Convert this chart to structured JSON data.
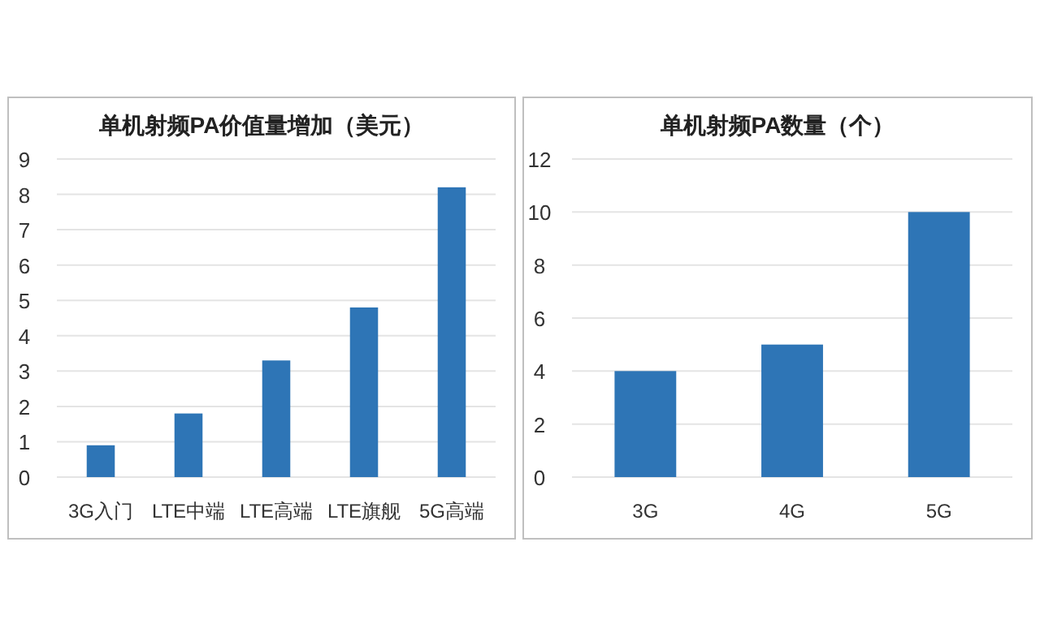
{
  "chart_data": [
    {
      "type": "bar",
      "title": "单机射频PA价值量增加（美元）",
      "categories": [
        "3G入门",
        "LTE中端",
        "LTE高端",
        "LTE旗舰",
        "5G高端"
      ],
      "values": [
        0.9,
        1.8,
        3.3,
        4.8,
        8.2
      ],
      "color": "#2e75b6",
      "ylim": [
        0,
        9
      ],
      "yticks": [
        0,
        1,
        2,
        3,
        4,
        5,
        6,
        7,
        8,
        9
      ],
      "grid": "y"
    },
    {
      "type": "bar",
      "title": "单机射频PA数量（个）",
      "categories": [
        "3G",
        "4G",
        "5G"
      ],
      "values": [
        4,
        5,
        10
      ],
      "color": "#2e75b6",
      "ylim": [
        0,
        12
      ],
      "yticks": [
        0,
        2,
        4,
        6,
        8,
        10,
        12
      ],
      "grid": "y"
    }
  ]
}
